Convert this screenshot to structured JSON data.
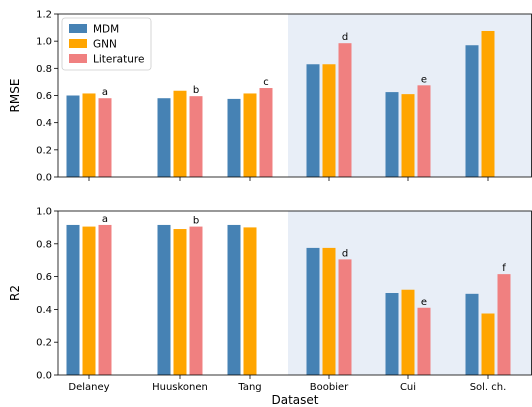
{
  "chart_data": [
    {
      "type": "bar",
      "xlabel": "",
      "ylabel": "RMSE",
      "ylim": [
        0,
        1.2
      ],
      "yticks": [
        "0.0",
        "0.2",
        "0.4",
        "0.6",
        "0.8",
        "1.0",
        "1.2"
      ],
      "categories": [
        "Delaney",
        "Huuskonen",
        "Tang",
        "Boobier",
        "Cui",
        "Sol. ch."
      ],
      "shaded_categories": [
        "Boobier",
        "Cui",
        "Sol. ch."
      ],
      "series": [
        {
          "name": "MDM",
          "color": "#4682b4",
          "values": [
            0.6,
            0.58,
            0.575,
            0.83,
            0.625,
            0.97
          ]
        },
        {
          "name": "GNN",
          "color": "#ffa500",
          "values": [
            0.615,
            0.635,
            0.615,
            0.83,
            0.61,
            1.075
          ]
        },
        {
          "name": "Literature",
          "color": "#f08080",
          "values": [
            0.58,
            0.595,
            0.655,
            0.985,
            0.675,
            null
          ]
        }
      ],
      "annotations": [
        {
          "category": "Delaney",
          "series": "Literature",
          "text": "a"
        },
        {
          "category": "Huuskonen",
          "series": "Literature",
          "text": "b"
        },
        {
          "category": "Tang",
          "series": "Literature",
          "text": "c"
        },
        {
          "category": "Boobier",
          "series": "Literature",
          "text": "d"
        },
        {
          "category": "Cui",
          "series": "Literature",
          "text": "e"
        }
      ],
      "legend": {
        "placement": "top-left",
        "entries": [
          "MDM",
          "GNN",
          "Literature"
        ]
      },
      "shade_color": "#e8eef7"
    },
    {
      "type": "bar",
      "xlabel": "Dataset",
      "ylabel": "R2",
      "ylim": [
        0,
        1.0
      ],
      "yticks": [
        "0.0",
        "0.2",
        "0.4",
        "0.6",
        "0.8",
        "1.0"
      ],
      "categories": [
        "Delaney",
        "Huuskonen",
        "Tang",
        "Boobier",
        "Cui",
        "Sol. ch."
      ],
      "shaded_categories": [
        "Boobier",
        "Cui",
        "Sol. ch."
      ],
      "series": [
        {
          "name": "MDM",
          "color": "#4682b4",
          "values": [
            0.915,
            0.915,
            0.915,
            0.775,
            0.5,
            0.495
          ]
        },
        {
          "name": "GNN",
          "color": "#ffa500",
          "values": [
            0.905,
            0.89,
            0.9,
            0.775,
            0.52,
            0.375
          ]
        },
        {
          "name": "Literature",
          "color": "#f08080",
          "values": [
            0.915,
            0.905,
            null,
            0.705,
            0.41,
            0.615
          ]
        }
      ],
      "annotations": [
        {
          "category": "Delaney",
          "series": "Literature",
          "text": "a"
        },
        {
          "category": "Huuskonen",
          "series": "Literature",
          "text": "b"
        },
        {
          "category": "Boobier",
          "series": "Literature",
          "text": "d"
        },
        {
          "category": "Cui",
          "series": "Literature",
          "text": "e"
        },
        {
          "category": "Sol. ch.",
          "series": "Literature",
          "text": "f"
        }
      ],
      "shade_color": "#e8eef7"
    }
  ]
}
